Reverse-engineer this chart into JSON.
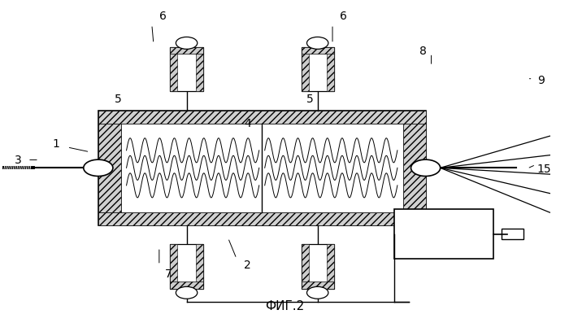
{
  "title": "ФИГ.2",
  "bg_color": "#ffffff",
  "label_color": "#000000"
}
